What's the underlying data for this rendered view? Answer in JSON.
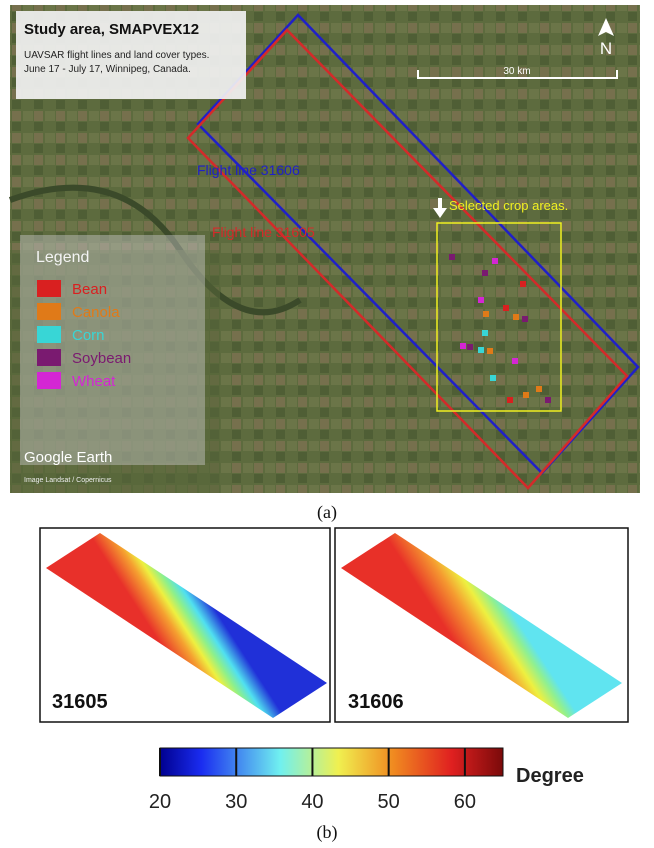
{
  "panel_a": {
    "title": "Study area, SMAPVEX12",
    "subtitle_lines": [
      "UAVSAR flight lines and land cover types.",
      "June 17 - July 17, Winnipeg, Canada."
    ],
    "north": "N",
    "scale": "30 km",
    "flight_lines": [
      {
        "label": "Flight line 31606",
        "color": "#2020c8"
      },
      {
        "label": "Flight line 31605",
        "color": "#d42a2a"
      }
    ],
    "crop_label": "Selected crop areas.",
    "legend": {
      "title": "Legend",
      "items": [
        {
          "name": "Bean",
          "color": "#d92020"
        },
        {
          "name": "Canola",
          "color": "#e07a18"
        },
        {
          "name": "Corn",
          "color": "#38d6d6"
        },
        {
          "name": "Soybean",
          "color": "#7a1a70"
        },
        {
          "name": "Wheat",
          "color": "#d426d4"
        }
      ]
    },
    "watermark": "Google Earth",
    "credit": "Image Landsat / Copernicus",
    "caption": "(a)"
  },
  "panel_b": {
    "maps": [
      {
        "label": "31605"
      },
      {
        "label": "31606"
      }
    ],
    "colorbar": {
      "clim": [
        20,
        65
      ],
      "ticks": [
        20,
        30,
        40,
        50,
        60
      ],
      "label": "Degree"
    },
    "caption": "(b)"
  }
}
